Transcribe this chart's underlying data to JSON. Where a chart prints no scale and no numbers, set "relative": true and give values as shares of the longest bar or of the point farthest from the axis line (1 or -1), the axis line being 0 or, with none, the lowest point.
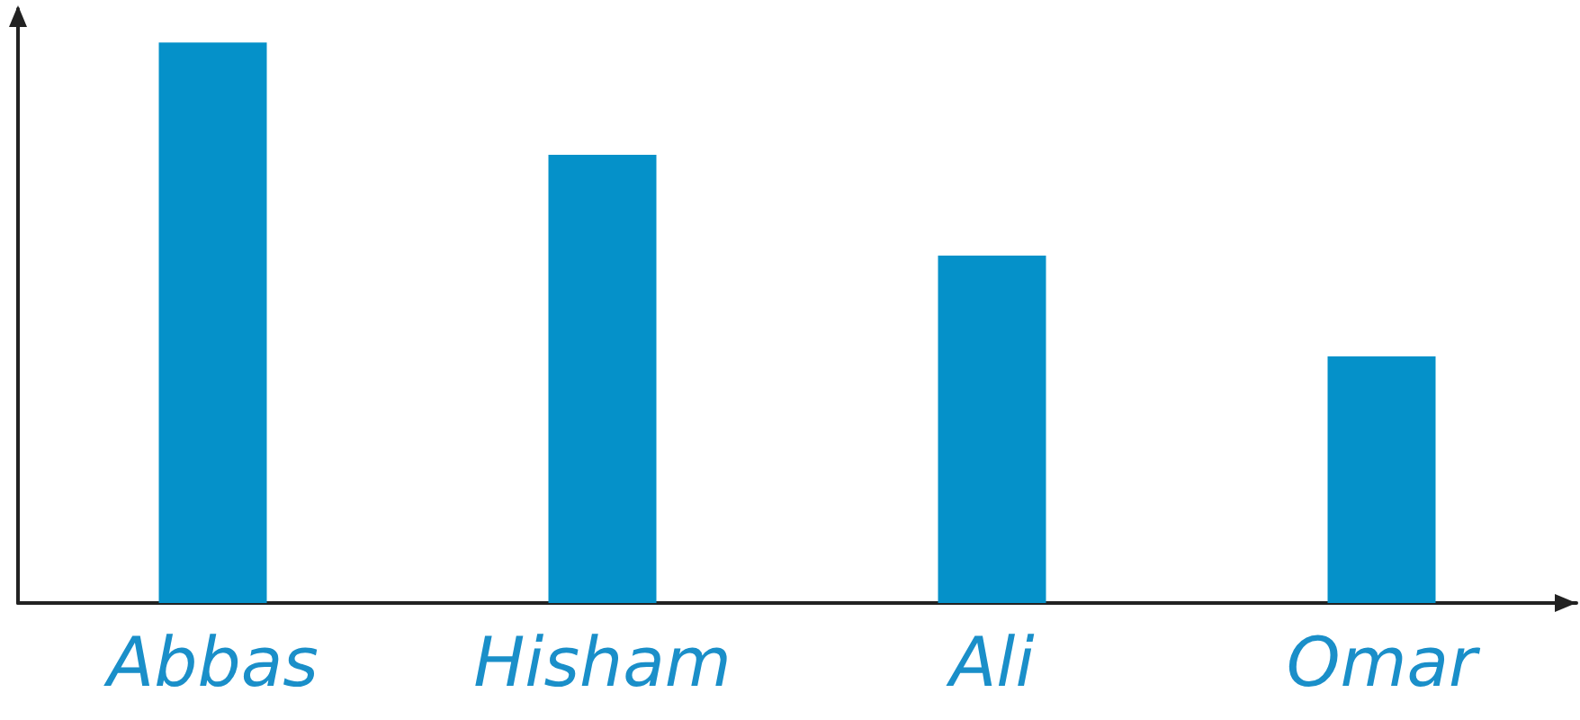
{
  "chart_data": {
    "type": "bar",
    "relative": true,
    "categories": [
      "Abbas",
      "Hisham",
      "Ali",
      "Omar"
    ],
    "values": [
      1,
      0.8,
      0.62,
      0.44
    ],
    "color": "#0591c9",
    "grid": false
  }
}
